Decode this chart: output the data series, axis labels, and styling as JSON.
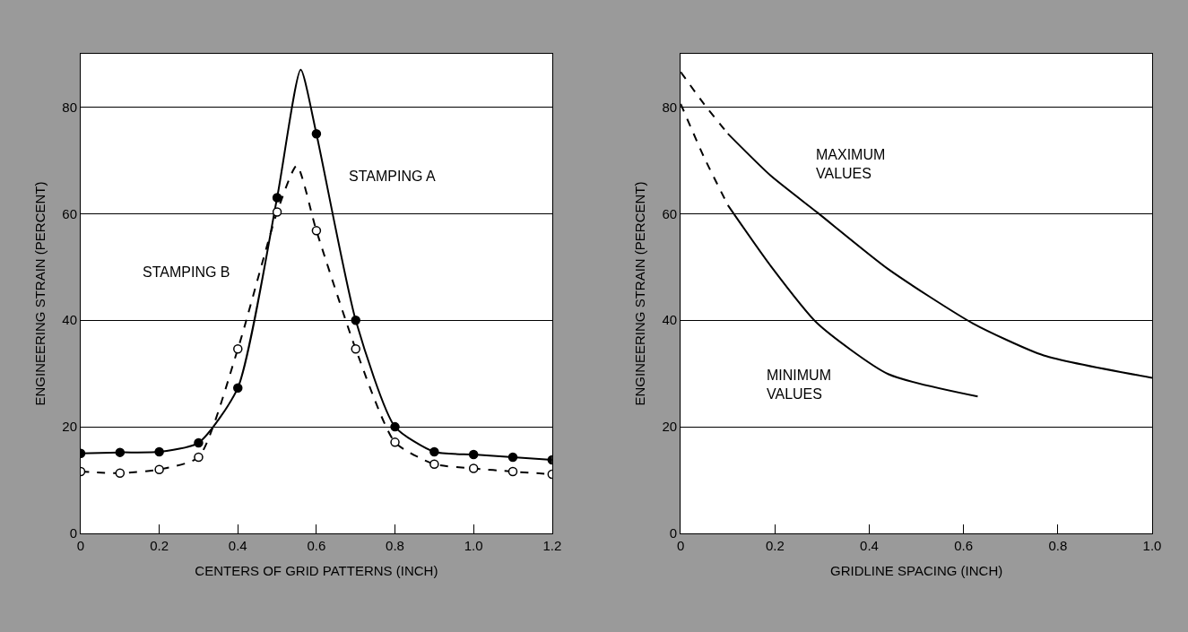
{
  "chart_data": [
    {
      "type": "line",
      "xlabel": "CENTERS OF GRID PATTERNS (INCH)",
      "ylabel": "ENGINEERING STRAIN (PERCENT)",
      "xlim": [
        0,
        1.2
      ],
      "xticks": [
        0,
        0.2,
        0.4,
        0.6,
        0.8,
        {
          "value": 1.0,
          "label": "1.0"
        },
        1.2
      ],
      "ylim": [
        0,
        90
      ],
      "yticks": [
        0,
        20,
        40,
        60,
        80
      ],
      "grid": "y",
      "series": [
        {
          "type": "line",
          "color": "#000000",
          "line_style": "solid",
          "marker": "none",
          "x": [
            0,
            0.1,
            0.2,
            0.3,
            0.4,
            0.5,
            0.56,
            0.6,
            0.7,
            0.8,
            0.9,
            1.0,
            1.1,
            1.2
          ],
          "values": [
            15,
            15.2,
            15.3,
            17,
            27.3,
            63,
            87,
            75,
            40,
            20,
            15.3,
            14.8,
            14.3,
            13.8
          ]
        },
        {
          "type": "line",
          "color": "#000000",
          "line_style": "dashed",
          "marker": "none",
          "x": [
            0,
            0.1,
            0.2,
            0.3,
            0.4,
            0.5,
            0.55,
            0.6,
            0.7,
            0.8,
            0.9,
            1.0,
            1.1,
            1.2
          ],
          "values": [
            11.6,
            11.3,
            12,
            14.3,
            34.6,
            60.3,
            69,
            56.8,
            34.6,
            17.1,
            13,
            12.2,
            11.6,
            11.1
          ]
        },
        {
          "type": "scatter",
          "color": "#000000",
          "marker": "circle",
          "x": [
            0,
            0.1,
            0.2,
            0.3,
            0.4,
            0.5,
            0.6,
            0.7,
            0.8,
            0.9,
            1.0,
            1.1,
            1.2
          ],
          "values": [
            15,
            15.2,
            15.3,
            17,
            27.3,
            63,
            75,
            40,
            20,
            15.3,
            14.8,
            14.3,
            13.8
          ]
        },
        {
          "type": "scatter",
          "color": "#ffffff",
          "marker": "circle",
          "x": [
            0,
            0.1,
            0.2,
            0.3,
            0.4,
            0.5,
            0.6,
            0.7,
            0.8,
            0.9,
            1.0,
            1.1,
            1.2
          ],
          "values": [
            11.6,
            11.3,
            12,
            14.3,
            34.6,
            60.3,
            56.8,
            34.6,
            17.1,
            13,
            12.2,
            11.6,
            11.1
          ]
        }
      ],
      "annotations": [
        "STAMPING A",
        "STAMPING B"
      ]
    },
    {
      "type": "line",
      "xlabel": "GRIDLINE SPACING (INCH)",
      "ylabel": "ENGINEERING STRAIN (PERCENT)",
      "xlim": [
        0,
        1.0
      ],
      "xticks": [
        0,
        0.2,
        0.4,
        0.6,
        0.8,
        {
          "value": 1.0,
          "label": "1.0"
        }
      ],
      "ylim": [
        0,
        90
      ],
      "yticks": [
        0,
        20,
        40,
        60,
        80
      ],
      "grid": "y",
      "series": [
        {
          "type": "line",
          "color": "#000000",
          "line_style": "dashed",
          "marker": "none",
          "x": [
            0,
            0.05,
            0.1
          ],
          "values": [
            86.6,
            80.5,
            75
          ]
        },
        {
          "type": "line",
          "color": "#000000",
          "line_style": "solid",
          "marker": "none",
          "x": [
            0.1,
            0.19,
            0.29,
            0.44,
            0.62,
            0.77,
            1.0
          ],
          "values": [
            75,
            67.2,
            60.2,
            49.6,
            39.4,
            33.4,
            29.2
          ]
        },
        {
          "type": "line",
          "color": "#000000",
          "line_style": "dashed",
          "marker": "none",
          "x": [
            0,
            0.05,
            0.1
          ],
          "values": [
            80.6,
            70.5,
            61.6
          ]
        },
        {
          "type": "line",
          "color": "#000000",
          "line_style": "solid",
          "marker": "none",
          "x": [
            0.1,
            0.19,
            0.29,
            0.44,
            0.63
          ],
          "values": [
            61.6,
            50.3,
            39.4,
            29.9,
            25.7
          ]
        }
      ],
      "annotations": [
        "MAXIMUM\nVALUES",
        "MINIMUM\nVALUES"
      ]
    }
  ]
}
